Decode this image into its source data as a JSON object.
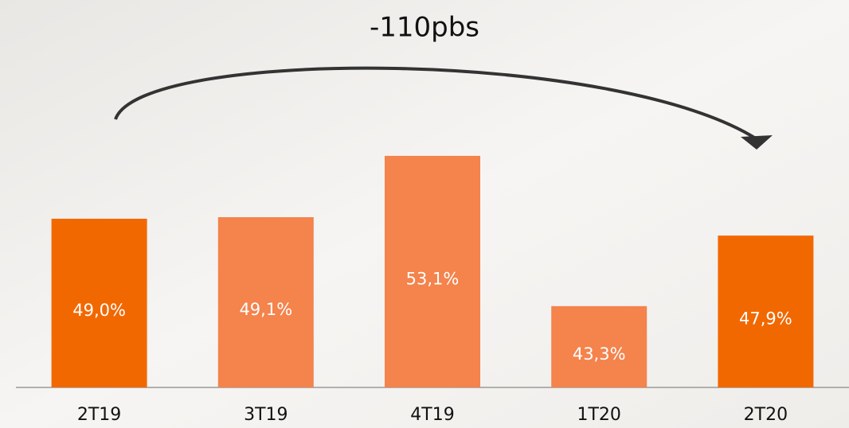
{
  "chart_data": {
    "type": "bar",
    "annotation": "-110pbs",
    "categories": [
      "2T19",
      "3T19",
      "4T19",
      "1T20",
      "2T20"
    ],
    "values": [
      49.0,
      49.1,
      53.1,
      43.3,
      47.9
    ],
    "value_labels": [
      "49,0%",
      "49,1%",
      "53,1%",
      "43,3%",
      "47,9%"
    ],
    "colors": [
      "#f26800",
      "#f4834c",
      "#f4834c",
      "#f4834c",
      "#f26800"
    ],
    "ylim": [
      38,
      56
    ]
  }
}
